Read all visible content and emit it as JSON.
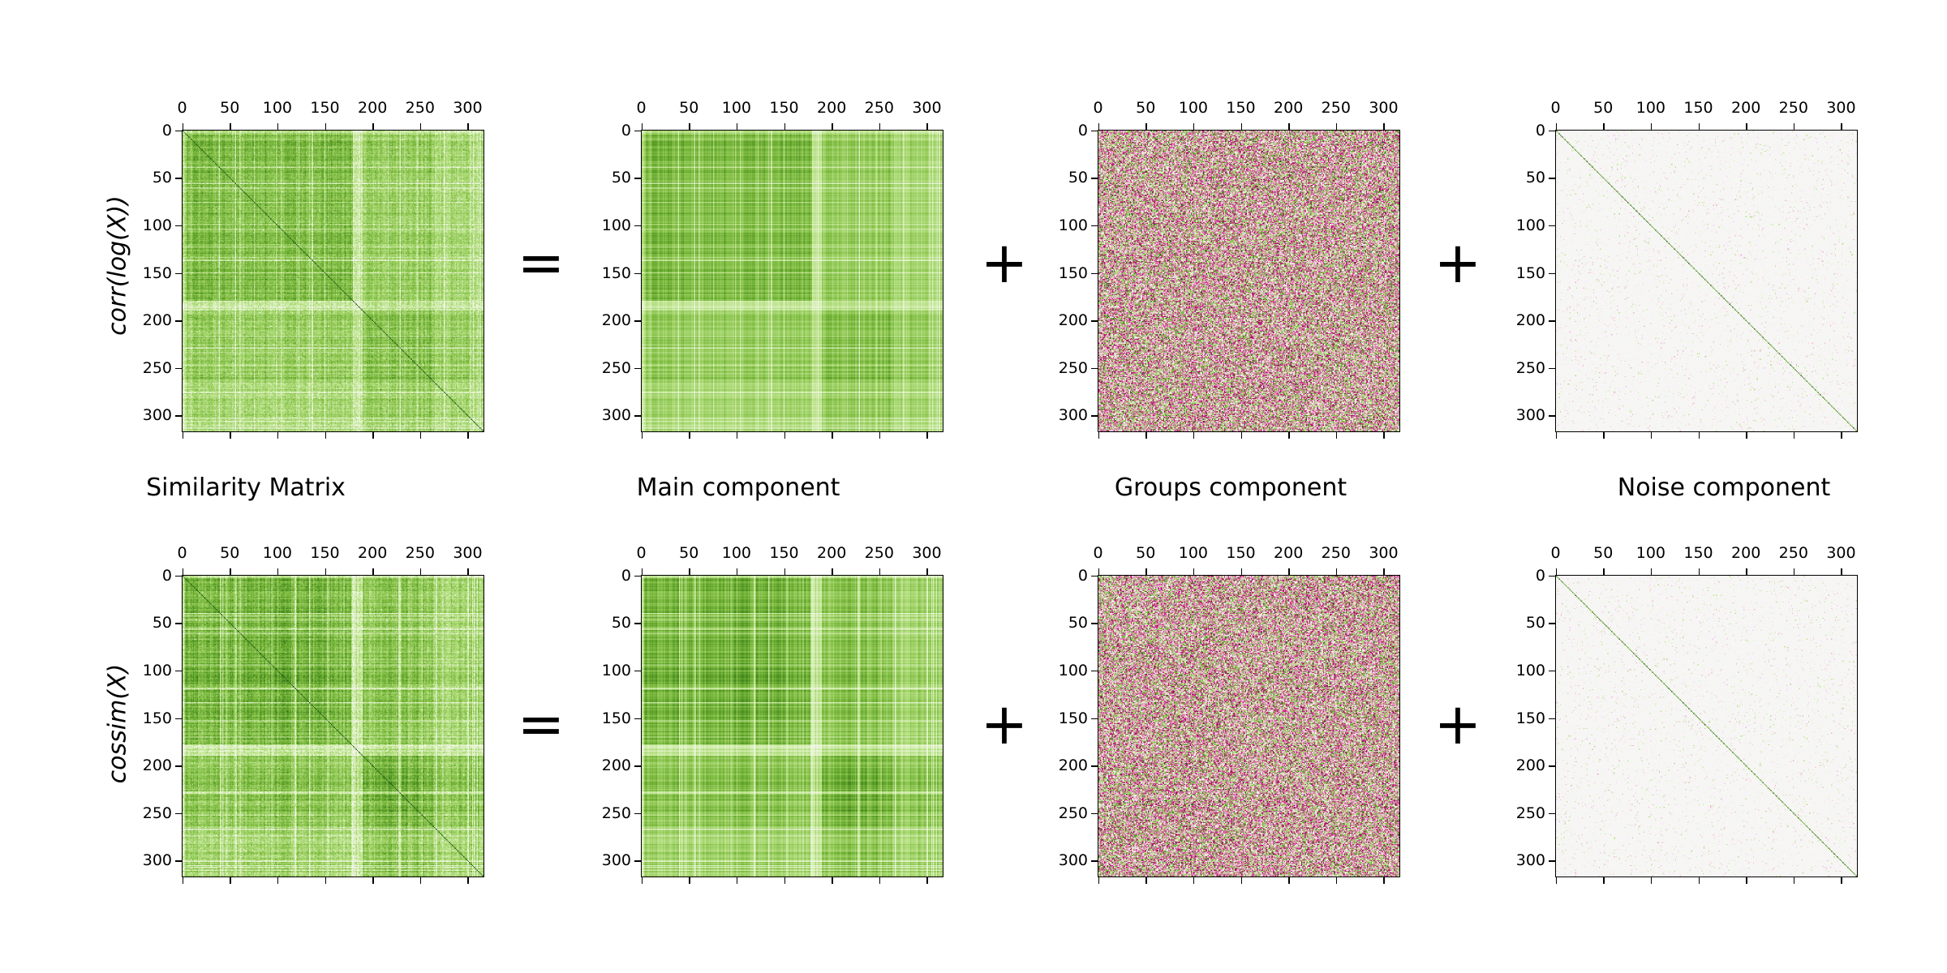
{
  "operators": [
    "=",
    "+",
    "+"
  ],
  "column_titles": [
    "Similarity Matrix",
    "Main component",
    "Groups component",
    "Noise component"
  ],
  "row_labels": [
    "corr(log(X))",
    "cossim(X)"
  ],
  "colors": {
    "colormap": "PiYG",
    "negative": "#8e0152",
    "neutral": "#f7f7f7",
    "positive": "#276419"
  },
  "chart_data": {
    "type": "heatmap",
    "matrix_size": 318,
    "colormap": "PiYG",
    "x_ticks": [
      "0",
      "50",
      "100",
      "150",
      "200",
      "250",
      "300"
    ],
    "y_ticks": [
      "0",
      "50",
      "100",
      "150",
      "200",
      "250",
      "300"
    ],
    "xlim": [
      0,
      318
    ],
    "ylim": [
      318,
      0
    ],
    "x_axis_position": "top",
    "grid": false,
    "panels": [
      {
        "row": "corr(log(X))",
        "column": "Similarity Matrix"
      },
      {
        "row": "corr(log(X))",
        "column": "Main component"
      },
      {
        "row": "corr(log(X))",
        "column": "Groups component"
      },
      {
        "row": "corr(log(X))",
        "column": "Noise component"
      },
      {
        "row": "cossim(X)",
        "column": "Similarity Matrix"
      },
      {
        "row": "cossim(X)",
        "column": "Main component"
      },
      {
        "row": "cossim(X)",
        "column": "Groups component"
      },
      {
        "row": "cossim(X)",
        "column": "Noise component"
      }
    ]
  }
}
